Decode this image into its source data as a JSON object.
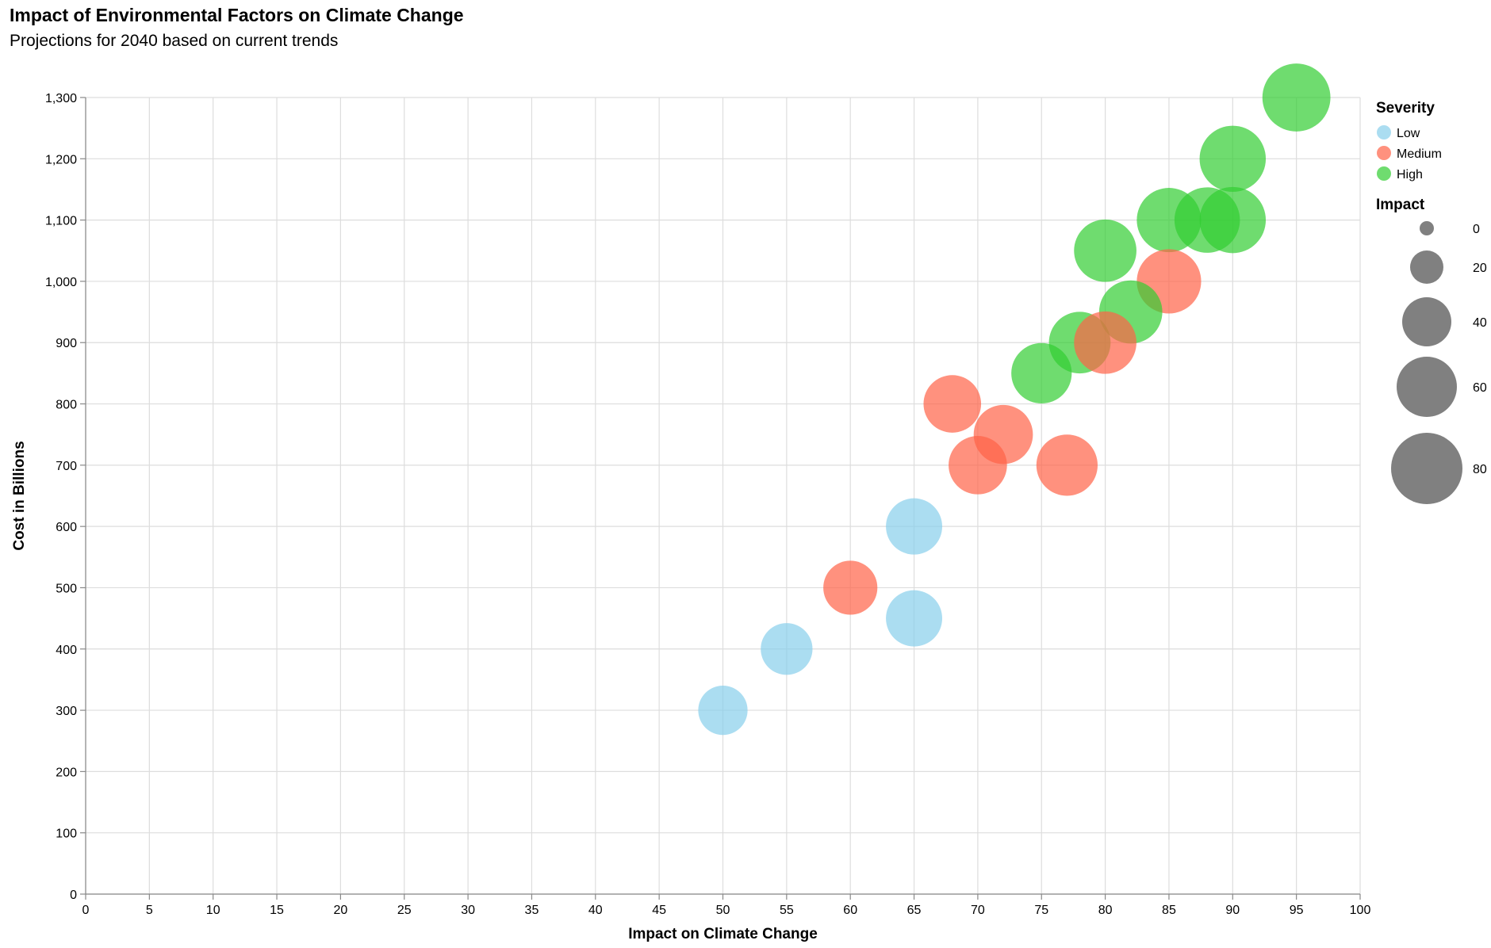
{
  "title": "Impact of Environmental Factors on Climate Change",
  "subtitle": "Projections for 2040 based on current trends",
  "chart_data": {
    "type": "scatter",
    "xlabel": "Impact on Climate Change",
    "ylabel": "Cost in Billions",
    "xlim": [
      0,
      100
    ],
    "ylim": [
      0,
      1300
    ],
    "x_ticks": [
      "0",
      "5",
      "10",
      "15",
      "20",
      "25",
      "30",
      "35",
      "40",
      "45",
      "50",
      "55",
      "60",
      "65",
      "70",
      "75",
      "80",
      "85",
      "90",
      "95",
      "100"
    ],
    "y_ticks": [
      "0",
      "100",
      "200",
      "300",
      "400",
      "500",
      "600",
      "700",
      "800",
      "900",
      "1,000",
      "1,100",
      "1,200",
      "1,300"
    ],
    "grid": true,
    "legend_placement": "right",
    "color_legend": {
      "title": "Severity",
      "items": [
        {
          "label": "Low",
          "color": "#87ceeb"
        },
        {
          "label": "Medium",
          "color": "#ff6347"
        },
        {
          "label": "High",
          "color": "#32cd32"
        }
      ]
    },
    "size_legend": {
      "title": "Impact",
      "values": [
        "0",
        "20",
        "40",
        "60",
        "80"
      ]
    },
    "points": [
      {
        "x": 95,
        "y": 1300,
        "severity": "High"
      },
      {
        "x": 90,
        "y": 1200,
        "severity": "High"
      },
      {
        "x": 85,
        "y": 1100,
        "severity": "High"
      },
      {
        "x": 88,
        "y": 1100,
        "severity": "High"
      },
      {
        "x": 90,
        "y": 1100,
        "severity": "High"
      },
      {
        "x": 80,
        "y": 1050,
        "severity": "High"
      },
      {
        "x": 85,
        "y": 1000,
        "severity": "Medium"
      },
      {
        "x": 82,
        "y": 950,
        "severity": "High"
      },
      {
        "x": 78,
        "y": 900,
        "severity": "High"
      },
      {
        "x": 80,
        "y": 900,
        "severity": "Medium"
      },
      {
        "x": 75,
        "y": 850,
        "severity": "High"
      },
      {
        "x": 68,
        "y": 800,
        "severity": "Medium"
      },
      {
        "x": 72,
        "y": 750,
        "severity": "Medium"
      },
      {
        "x": 70,
        "y": 700,
        "severity": "Medium"
      },
      {
        "x": 77,
        "y": 700,
        "severity": "Medium"
      },
      {
        "x": 65,
        "y": 600,
        "severity": "Low"
      },
      {
        "x": 60,
        "y": 500,
        "severity": "Medium"
      },
      {
        "x": 65,
        "y": 450,
        "severity": "Low"
      },
      {
        "x": 55,
        "y": 400,
        "severity": "Low"
      },
      {
        "x": 50,
        "y": 300,
        "severity": "Low"
      }
    ]
  }
}
